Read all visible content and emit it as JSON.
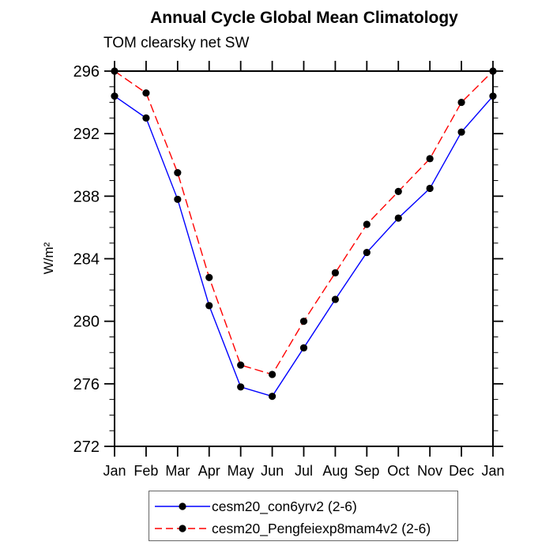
{
  "title": "Annual Cycle Global Mean Climatology",
  "subtitle": "TOM clearsky net SW",
  "ylabel": "W/m²",
  "chart_data": {
    "type": "line",
    "categories": [
      "Jan",
      "Feb",
      "Mar",
      "Apr",
      "May",
      "Jun",
      "Jul",
      "Aug",
      "Sep",
      "Oct",
      "Nov",
      "Dec",
      "Jan"
    ],
    "series": [
      {
        "name": "cesm20_con6yrv2 (2-6)",
        "color": "#0000ff",
        "line_style": "solid",
        "marker": "black-dot",
        "values": [
          294.4,
          293.0,
          287.8,
          281.0,
          275.8,
          275.2,
          278.3,
          281.4,
          284.4,
          286.6,
          288.5,
          292.1,
          294.4
        ]
      },
      {
        "name": "cesm20_Pengfeiexp8mam4v2 (2-6)",
        "color": "#ff0000",
        "line_style": "dashed",
        "marker": "black-dot",
        "values": [
          296.0,
          294.6,
          289.5,
          282.8,
          277.2,
          276.6,
          280.0,
          283.1,
          286.2,
          288.3,
          290.4,
          294.0,
          296.0
        ]
      }
    ],
    "xlabel": "",
    "ylabel": "W/m²",
    "ylim": [
      272,
      296
    ],
    "yticks": [
      272,
      276,
      280,
      284,
      288,
      292,
      296
    ],
    "minor_tick_interval": 1,
    "grid": false,
    "frame_color": "#000000",
    "marker_color": "#000000",
    "legend_position": "bottom-center"
  }
}
